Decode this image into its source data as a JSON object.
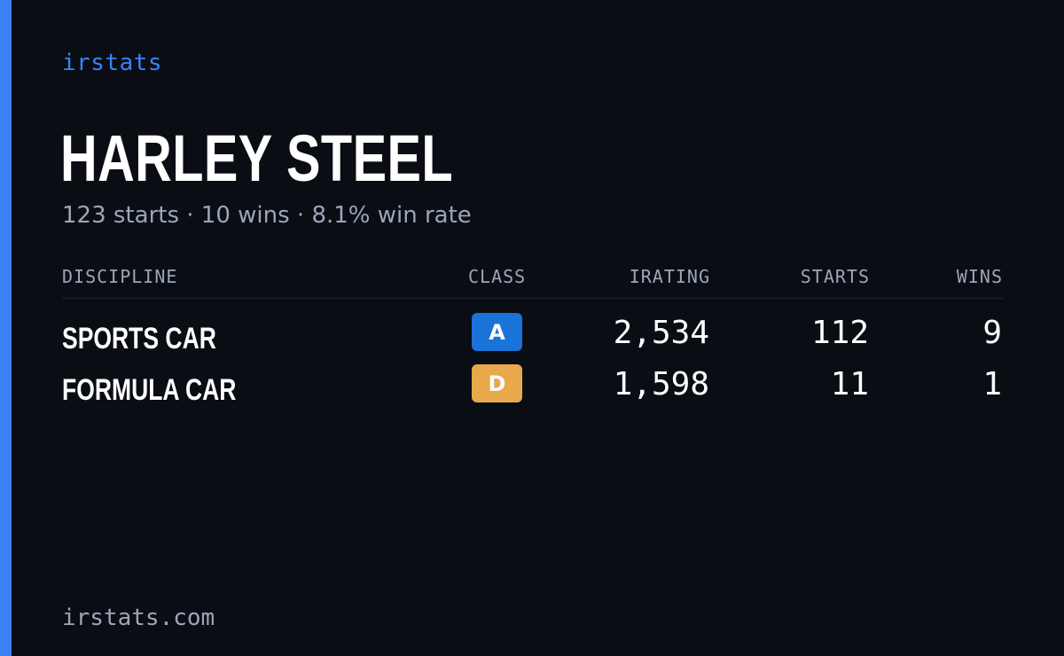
{
  "brand": "irstats",
  "driver": {
    "name": "HARLEY STEEL",
    "summary": "123 starts · 10 wins · 8.1% win rate"
  },
  "table": {
    "headers": {
      "discipline": "DISCIPLINE",
      "class": "CLASS",
      "irating": "IRATING",
      "starts": "STARTS",
      "wins": "WINS"
    },
    "rows": [
      {
        "discipline": "SPORTS CAR",
        "class": "A",
        "class_color": "#1a73d9",
        "irating": "2,534",
        "starts": "112",
        "wins": "9"
      },
      {
        "discipline": "FORMULA CAR",
        "class": "D",
        "class_color": "#e8a84c",
        "irating": "1,598",
        "starts": "11",
        "wins": "1"
      }
    ]
  },
  "footer": {
    "url": "irstats.com"
  },
  "colors": {
    "accent": "#3b82f6",
    "background": "#0a0d14",
    "muted_text": "#9ba6b8"
  }
}
